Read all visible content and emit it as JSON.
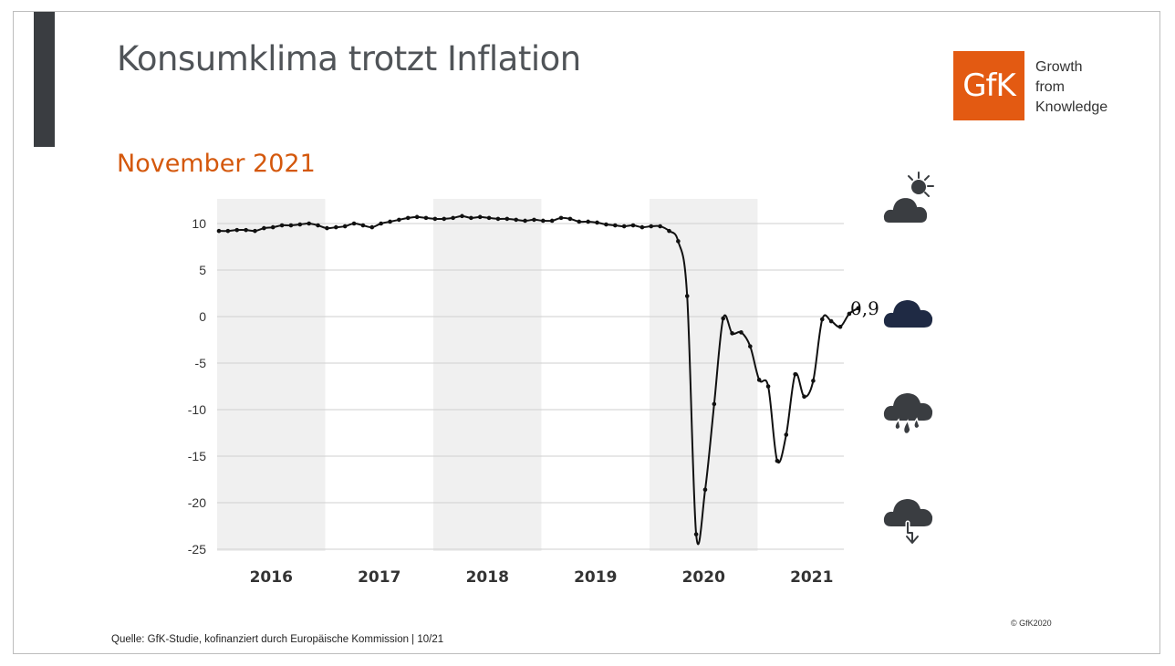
{
  "header": {
    "title": "Konsumklima trotzt Inflation",
    "subtitle": "November 2021"
  },
  "logo": {
    "text": "GfK",
    "tagline": [
      "Growth",
      "from",
      "Knowledge"
    ],
    "brand_color": "#e35a12"
  },
  "footer": {
    "source": "Quelle: GfK-Studie, kofinanziert durch Europäische Kommission | 10/21",
    "copyright": "© GfK2020"
  },
  "weather_icons": [
    "cloud-sun-icon",
    "cloud-icon",
    "cloud-rain-icon",
    "cloud-thunderstorm-icon"
  ],
  "colors": {
    "title": "#505458",
    "subtitle": "#d4580c",
    "line": "#111111",
    "band": "#f0f0f0",
    "current_cloud": "#1f2a44",
    "cloud": "#3a3d41"
  },
  "chart_data": {
    "type": "line",
    "title": "",
    "xlabel": "",
    "ylabel": "",
    "ylim": [
      -25,
      12
    ],
    "yticks": [
      10,
      5,
      0,
      -5,
      -10,
      -15,
      -20,
      -25
    ],
    "grid": true,
    "years": [
      "2016",
      "2017",
      "2018",
      "2019",
      "2020",
      "2021"
    ],
    "x_start": "2016-01",
    "last_value_label": "0,9",
    "series": [
      {
        "values": [
          9.2,
          9.2,
          9.3,
          9.3,
          9.2,
          9.5,
          9.6,
          9.8,
          9.8,
          9.9,
          10.0,
          9.8,
          9.5,
          9.6,
          9.7,
          10.0,
          9.8,
          9.6,
          10.0,
          10.2,
          10.4,
          10.6,
          10.7,
          10.6,
          10.5,
          10.5,
          10.6,
          10.8,
          10.6,
          10.7,
          10.6,
          10.5,
          10.5,
          10.4,
          10.3,
          10.4,
          10.3,
          10.3,
          10.6,
          10.5,
          10.2,
          10.2,
          10.1,
          9.9,
          9.8,
          9.7,
          9.8,
          9.6,
          9.7,
          9.7,
          9.2,
          8.1,
          2.2,
          -23.4,
          -18.6,
          -9.4,
          -0.2,
          -1.8,
          -1.7,
          -3.2,
          -6.8,
          -7.5,
          -15.5,
          -12.7,
          -6.2,
          -8.6,
          -6.9,
          -0.3,
          -0.5,
          -1.1,
          0.3,
          0.9
        ]
      }
    ]
  }
}
